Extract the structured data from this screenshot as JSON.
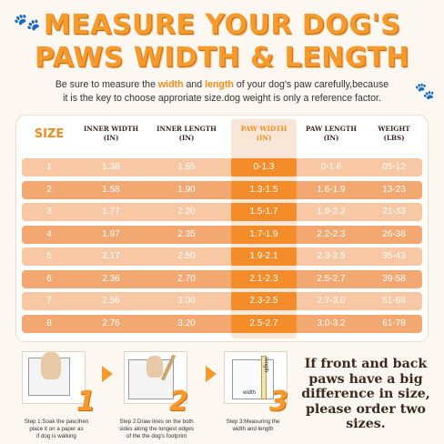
{
  "title": {
    "line1": "MEASURE YOUR DOG'S",
    "line2": "PAWS WIDTH & LENGTH"
  },
  "intro": {
    "p1": "Be sure to measure the ",
    "width_word": "width",
    "p2": " and ",
    "length_word": "length",
    "p3": " of your dog's paw carefully,because",
    "line2": "it is the key to choose approriate size.dog weight is only a reference factor."
  },
  "table": {
    "headers": {
      "size": "SIZE",
      "inner_width": [
        "INNER WIDTH",
        "(IN)"
      ],
      "inner_length": [
        "INNER LENGTH",
        "(IN)"
      ],
      "paw_width": [
        "PAW WIDTH",
        "(IN)"
      ],
      "paw_length": [
        "PAW LENGTH",
        "(IN)"
      ],
      "weight": [
        "WEIGHT",
        "(LBS)"
      ]
    },
    "rows": [
      [
        "1",
        "1.38",
        "1.65",
        "0-1.3",
        "0-1.6",
        "05-12"
      ],
      [
        "2",
        "1.58",
        "1.90",
        "1.3-1.5",
        "1.6-1.9",
        "13-23"
      ],
      [
        "3",
        "1.77",
        "2.20",
        "1.5-1.7",
        "1.9-2.2",
        "21-33"
      ],
      [
        "4",
        "1.97",
        "2.35",
        "1.7-1.9",
        "2.2-2.3",
        "26-38"
      ],
      [
        "5",
        "2.17",
        "2.50",
        "1.9-2.1",
        "2.3-2.5",
        "35-43"
      ],
      [
        "6",
        "2.36",
        "2.70",
        "2.1-2.3",
        "2.5-2.7",
        "39-58"
      ],
      [
        "7",
        "2.56",
        "3.00",
        "2.3-2.5",
        "2.7-3.0",
        "51-68"
      ],
      [
        "8",
        "2.76",
        "3.20",
        "2.5-2.7",
        "3.0-3.2",
        "61-78"
      ]
    ]
  },
  "steps": [
    {
      "number": "1",
      "caption": [
        "Step 1:Soak the paw,then",
        "place it on a  paper as",
        "if dog is walking"
      ]
    },
    {
      "number": "2",
      "caption": [
        "Step 2:Draw lines on the both",
        "sides along the longest edges",
        "of the the dog's footprint"
      ]
    },
    {
      "number": "3",
      "caption": [
        "Step 3:Measuring the",
        "width and length"
      ],
      "label_length": "length",
      "label_width": "width"
    }
  ],
  "note": [
    "If front and back",
    "paws have a big",
    "difference in size,",
    "please order two",
    "sizes."
  ],
  "colors": {
    "accent": "#f59a2b",
    "row_light": "#f7c8a3",
    "row_dark": "#f3a872",
    "paw_col": "#f58c2a"
  }
}
